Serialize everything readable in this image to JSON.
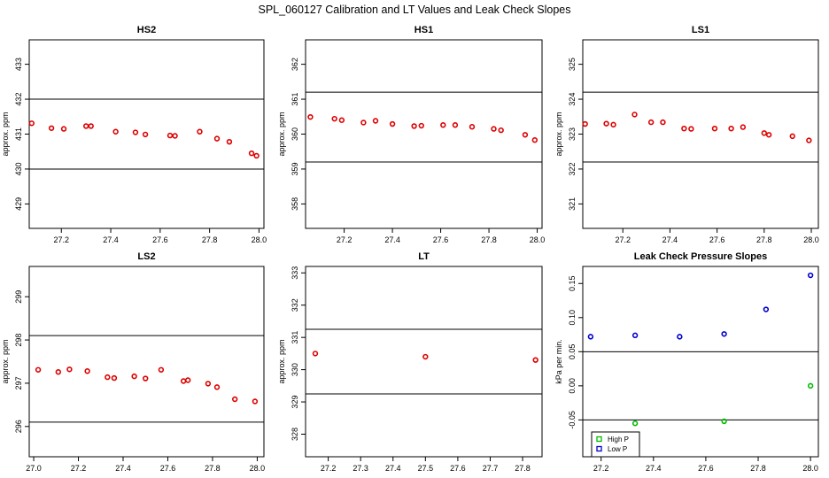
{
  "figure": {
    "title": "SPL_060127  Calibration and LT Values and Leak Check Slopes"
  },
  "chart_data": [
    {
      "type": "scatter",
      "title": "HS2",
      "xlabel": "",
      "ylabel": "approx. ppm",
      "xlim": [
        27.07,
        28.02
      ],
      "ylim": [
        428.3,
        433.7
      ],
      "xticks": [
        27.2,
        27.4,
        27.6,
        27.8,
        28.0
      ],
      "xtick_labels": [
        "27.2",
        "27.4",
        "27.6",
        "27.8",
        "28.0"
      ],
      "yticks": [
        429,
        430,
        431,
        432,
        433
      ],
      "ytick_labels": [
        "429",
        "430",
        "431",
        "432",
        "433"
      ],
      "hlines": [
        430,
        432
      ],
      "grid": false,
      "series": [
        {
          "color": "#dd0000",
          "marker": "circle",
          "x": [
            27.08,
            27.16,
            27.21,
            27.3,
            27.32,
            27.42,
            27.5,
            27.54,
            27.64,
            27.66,
            27.76,
            27.83,
            27.88,
            27.97,
            27.99
          ],
          "y": [
            431.31,
            431.17,
            431.15,
            431.23,
            431.23,
            431.07,
            431.05,
            430.99,
            430.96,
            430.95,
            431.07,
            430.87,
            430.78,
            430.45,
            430.38
          ]
        }
      ]
    },
    {
      "type": "scatter",
      "title": "HS1",
      "xlabel": "",
      "ylabel": "approx. ppm",
      "xlim": [
        27.04,
        28.02
      ],
      "ylim": [
        357.3,
        362.7
      ],
      "xticks": [
        27.2,
        27.4,
        27.6,
        27.8,
        28.0
      ],
      "xtick_labels": [
        "27.2",
        "27.4",
        "27.6",
        "27.8",
        "28.0"
      ],
      "yticks": [
        358,
        359,
        360,
        361,
        362
      ],
      "ytick_labels": [
        "358",
        "359",
        "360",
        "361",
        "362"
      ],
      "hlines": [
        359.2,
        361.2
      ],
      "grid": false,
      "series": [
        {
          "color": "#dd0000",
          "marker": "circle",
          "x": [
            27.06,
            27.16,
            27.19,
            27.28,
            27.33,
            27.4,
            27.49,
            27.52,
            27.61,
            27.66,
            27.73,
            27.82,
            27.85,
            27.95,
            27.99
          ],
          "y": [
            360.49,
            360.44,
            360.4,
            360.33,
            360.38,
            360.29,
            360.23,
            360.24,
            360.26,
            360.26,
            360.21,
            360.15,
            360.11,
            359.98,
            359.83
          ]
        }
      ]
    },
    {
      "type": "scatter",
      "title": "LS1",
      "xlabel": "",
      "ylabel": "approx. ppm",
      "xlim": [
        27.03,
        28.03
      ],
      "ylim": [
        320.3,
        325.7
      ],
      "xticks": [
        27.2,
        27.4,
        27.6,
        27.8,
        28.0
      ],
      "xtick_labels": [
        "27.2",
        "27.4",
        "27.6",
        "27.8",
        "28.0"
      ],
      "yticks": [
        321,
        322,
        323,
        324,
        325
      ],
      "ytick_labels": [
        "321",
        "322",
        "323",
        "324",
        "325"
      ],
      "hlines": [
        322.2,
        324.2
      ],
      "grid": false,
      "series": [
        {
          "color": "#dd0000",
          "marker": "circle",
          "x": [
            27.04,
            27.13,
            27.16,
            27.25,
            27.32,
            27.37,
            27.46,
            27.49,
            27.59,
            27.66,
            27.71,
            27.8,
            27.82,
            27.92,
            27.99
          ],
          "y": [
            323.29,
            323.3,
            323.27,
            323.56,
            323.34,
            323.34,
            323.16,
            323.15,
            323.16,
            323.16,
            323.2,
            323.03,
            322.98,
            322.94,
            322.82
          ]
        }
      ]
    },
    {
      "type": "scatter",
      "title": "LS2",
      "xlabel": "",
      "ylabel": "approx. ppm",
      "xlim": [
        26.98,
        28.03
      ],
      "ylim": [
        295.3,
        299.7
      ],
      "xticks": [
        27.0,
        27.2,
        27.4,
        27.6,
        27.8,
        28.0
      ],
      "xtick_labels": [
        "27.0",
        "27.2",
        "27.4",
        "27.6",
        "27.8",
        "28.0"
      ],
      "yticks": [
        296,
        297,
        298,
        299
      ],
      "ytick_labels": [
        "296",
        "297",
        "298",
        "299"
      ],
      "hlines": [
        296.1,
        298.1
      ],
      "grid": false,
      "series": [
        {
          "color": "#dd0000",
          "marker": "circle",
          "x": [
            27.02,
            27.11,
            27.16,
            27.24,
            27.33,
            27.36,
            27.45,
            27.5,
            27.57,
            27.67,
            27.69,
            27.78,
            27.82,
            27.9,
            27.99
          ],
          "y": [
            297.31,
            297.26,
            297.32,
            297.28,
            297.14,
            297.12,
            297.16,
            297.11,
            297.31,
            297.05,
            297.07,
            296.99,
            296.91,
            296.63,
            296.58
          ]
        }
      ]
    },
    {
      "type": "scatter",
      "title": "LT",
      "xlabel": "",
      "ylabel": "approx. ppm",
      "xlim": [
        27.13,
        27.86
      ],
      "ylim": [
        327.3,
        333.2
      ],
      "xticks": [
        27.2,
        27.3,
        27.4,
        27.5,
        27.6,
        27.7,
        27.8
      ],
      "xtick_labels": [
        "27.2",
        "27.3",
        "27.4",
        "27.5",
        "27.6",
        "27.7",
        "27.8"
      ],
      "yticks": [
        328,
        329,
        330,
        331,
        332,
        333
      ],
      "ytick_labels": [
        "328",
        "329",
        "330",
        "331",
        "332",
        "333"
      ],
      "hlines": [
        329.25,
        331.25
      ],
      "grid": false,
      "series": [
        {
          "color": "#dd0000",
          "marker": "circle",
          "x": [
            27.16,
            27.5,
            27.84
          ],
          "y": [
            330.5,
            330.4,
            330.3
          ]
        }
      ]
    },
    {
      "type": "scatter",
      "title": "Leak Check Pressure Slopes",
      "xlabel": "",
      "ylabel": "kPa per min.",
      "xlim": [
        27.13,
        28.03
      ],
      "ylim": [
        -0.104,
        0.175
      ],
      "xticks": [
        27.2,
        27.4,
        27.6,
        27.8,
        28.0
      ],
      "xtick_labels": [
        "27.2",
        "27.4",
        "27.6",
        "27.8",
        "28.0"
      ],
      "yticks": [
        -0.05,
        0.0,
        0.05,
        0.1,
        0.15
      ],
      "ytick_labels": [
        "-0.05",
        "0.00",
        "0.05",
        "0.10",
        "0.15"
      ],
      "hlines": [
        -0.05,
        0.05
      ],
      "grid": false,
      "legend": {
        "position": "bottom-left",
        "entries": [
          "High P",
          "Low P"
        ]
      },
      "series": [
        {
          "name": "High P",
          "color": "#00bb00",
          "marker": "circle",
          "x": [
            27.33,
            27.67,
            28.0
          ],
          "y": [
            -0.055,
            -0.052,
            0.0
          ]
        },
        {
          "name": "Low P",
          "color": "#0000cc",
          "marker": "circle",
          "x": [
            27.16,
            27.33,
            27.5,
            27.67,
            27.83,
            28.0
          ],
          "y": [
            0.072,
            0.074,
            0.072,
            0.076,
            0.112,
            0.162
          ]
        }
      ]
    }
  ]
}
